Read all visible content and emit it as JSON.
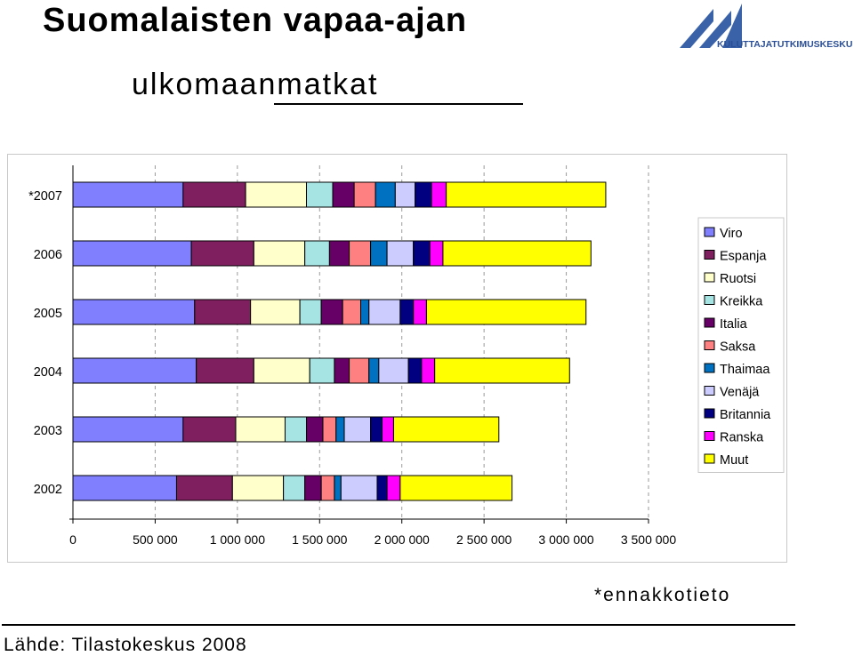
{
  "page": {
    "title_line1": "Suomalaisten vapaa-ajan",
    "title_line2": "ulkomaanmatkat",
    "logo_text": "KULUTTAJATUTKIMUSKESKUS",
    "footnote": "*ennakkotieto",
    "source": "Lähde: Tilastokeskus 2008"
  },
  "chart_data": {
    "type": "bar",
    "orientation": "horizontal",
    "stacked": true,
    "title": "",
    "xlabel": "",
    "ylabel": "",
    "xlim": [
      0,
      3500000
    ],
    "x_ticks": [
      0,
      500000,
      1000000,
      1500000,
      2000000,
      2500000,
      3000000,
      3500000
    ],
    "x_tick_labels": [
      "0",
      "500 000",
      "1 000 000",
      "1 500 000",
      "2 000 000",
      "2 500 000",
      "3 000 000",
      "3 500 000"
    ],
    "grid": "vertical dashed",
    "legend_position": "right",
    "categories": [
      "*2007",
      "2006",
      "2005",
      "2004",
      "2003",
      "2002"
    ],
    "series": [
      {
        "name": "Viro",
        "color": "#8080ff",
        "values": [
          670000,
          720000,
          740000,
          750000,
          670000,
          630000
        ]
      },
      {
        "name": "Espanja",
        "color": "#7f1f5f",
        "values": [
          380000,
          380000,
          340000,
          350000,
          320000,
          340000
        ]
      },
      {
        "name": "Ruotsi",
        "color": "#ffffcc",
        "values": [
          370000,
          310000,
          300000,
          340000,
          300000,
          310000
        ]
      },
      {
        "name": "Kreikka",
        "color": "#a6e3e3",
        "values": [
          160000,
          150000,
          130000,
          150000,
          130000,
          130000
        ]
      },
      {
        "name": "Italia",
        "color": "#660066",
        "values": [
          130000,
          120000,
          130000,
          90000,
          100000,
          100000
        ]
      },
      {
        "name": "Saksa",
        "color": "#ff8080",
        "values": [
          130000,
          130000,
          110000,
          120000,
          80000,
          80000
        ]
      },
      {
        "name": "Thaimaa",
        "color": "#0070c0",
        "values": [
          120000,
          100000,
          50000,
          60000,
          50000,
          40000
        ]
      },
      {
        "name": "Venäjä",
        "color": "#ccccff",
        "values": [
          120000,
          160000,
          190000,
          180000,
          160000,
          220000
        ]
      },
      {
        "name": "Britannia",
        "color": "#000080",
        "values": [
          100000,
          100000,
          80000,
          80000,
          70000,
          60000
        ]
      },
      {
        "name": "Ranska",
        "color": "#ff00ff",
        "values": [
          90000,
          80000,
          80000,
          80000,
          70000,
          80000
        ]
      },
      {
        "name": "Muut",
        "color": "#ffff00",
        "values": [
          970000,
          900000,
          970000,
          820000,
          640000,
          680000
        ]
      }
    ]
  }
}
